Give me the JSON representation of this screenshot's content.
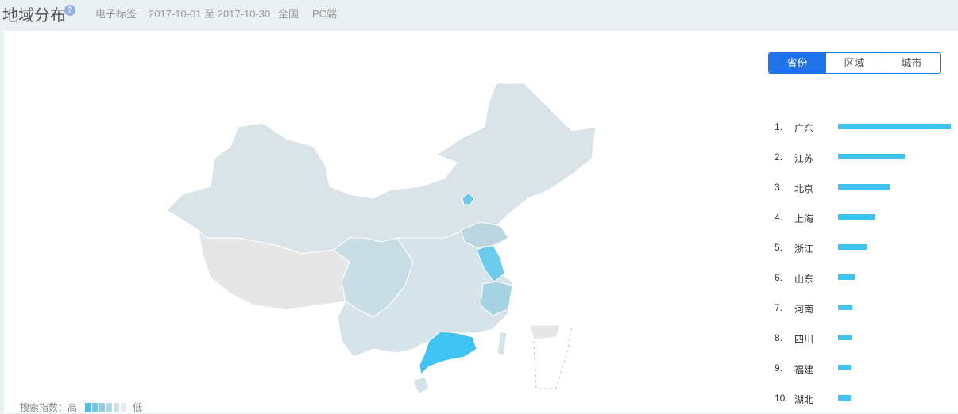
{
  "header": {
    "title": "地域分布",
    "help_icon": "question-circle-icon",
    "keyword": "电子标签",
    "date_range": "2017-10-01 至 2017-10-30",
    "region": "全国",
    "platform": "PC端"
  },
  "tabs": [
    {
      "label": "省份",
      "active": true
    },
    {
      "label": "区域",
      "active": false
    },
    {
      "label": "城市",
      "active": false
    }
  ],
  "ranking": [
    {
      "rank": "1.",
      "name": "广东",
      "percent": 100
    },
    {
      "rank": "2.",
      "name": "江苏",
      "percent": 59
    },
    {
      "rank": "3.",
      "name": "北京",
      "percent": 46
    },
    {
      "rank": "4.",
      "name": "上海",
      "percent": 33
    },
    {
      "rank": "5.",
      "name": "浙江",
      "percent": 26
    },
    {
      "rank": "6.",
      "name": "山东",
      "percent": 15
    },
    {
      "rank": "7.",
      "name": "河南",
      "percent": 13
    },
    {
      "rank": "8.",
      "name": "四川",
      "percent": 12
    },
    {
      "rank": "9.",
      "name": "福建",
      "percent": 11
    },
    {
      "rank": "10.",
      "name": "湖北",
      "percent": 11
    }
  ],
  "legend": {
    "label": "搜索指数：高",
    "low_label": "低",
    "colors": [
      "#40c3f2",
      "#6ccbea",
      "#92cce0",
      "#b2d6e2",
      "#cfdfe5",
      "#e6ecee"
    ]
  },
  "colors": {
    "accent": "#1f73e8",
    "bar": "#40c3f2",
    "map_base": "#d9e3e8",
    "map_no_data": "#e6e6e6"
  }
}
